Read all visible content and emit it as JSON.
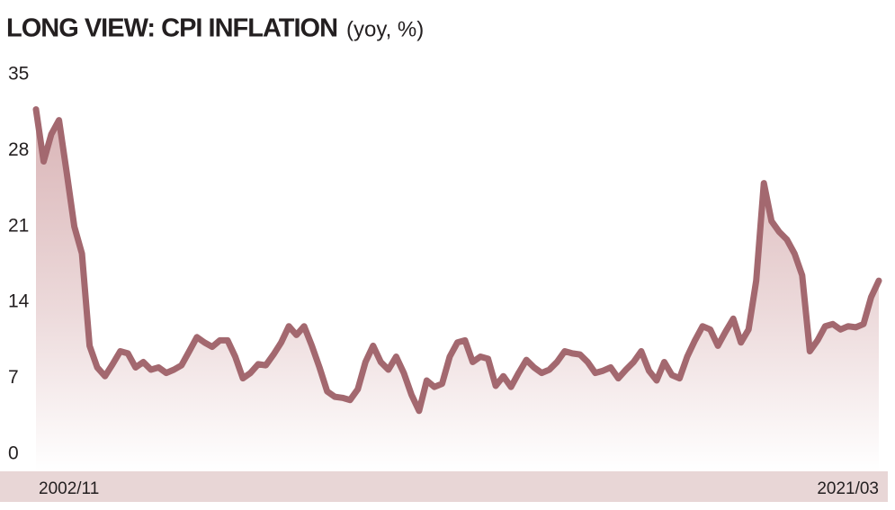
{
  "chart_data": {
    "type": "line",
    "title": "LONG VIEW: CPI INFLATION",
    "subtitle": "(yoy, %)",
    "categories": [
      "2002/11",
      null,
      null,
      null,
      null,
      null,
      null,
      null,
      null,
      null,
      null,
      null,
      null,
      null,
      null,
      null,
      null,
      null,
      null,
      null,
      null,
      null,
      null,
      null,
      null,
      null,
      null,
      null,
      null,
      null,
      null,
      null,
      null,
      null,
      null,
      null,
      null,
      null,
      null,
      null,
      null,
      null,
      null,
      null,
      null,
      null,
      null,
      null,
      null,
      null,
      null,
      null,
      null,
      null,
      null,
      null,
      null,
      null,
      null,
      null,
      null,
      null,
      null,
      null,
      null,
      null,
      null,
      null,
      null,
      null,
      null,
      null,
      null,
      null,
      null,
      null,
      null,
      null,
      null,
      null,
      null,
      null,
      null,
      null,
      null,
      null,
      null,
      null,
      null,
      null,
      null,
      null,
      null,
      null,
      null,
      null,
      null,
      null,
      null,
      null,
      null,
      null,
      null,
      null,
      null,
      null,
      null,
      null,
      null,
      null,
      "2021/03"
    ],
    "values": [
      31.8,
      27,
      29.5,
      30.8,
      26,
      21,
      18.5,
      10,
      8,
      7.2,
      8.3,
      9.5,
      9.3,
      8,
      8.5,
      7.8,
      8,
      7.5,
      7.8,
      8.2,
      9.5,
      10.8,
      10.3,
      9.9,
      10.5,
      10.5,
      9,
      7,
      7.5,
      8.3,
      8.2,
      9.2,
      10.3,
      11.8,
      11,
      11.8,
      10,
      8,
      5.8,
      5.3,
      5.2,
      5,
      6,
      8.5,
      10,
      8.5,
      7.8,
      9,
      7.5,
      5.5,
      4,
      6.8,
      6.2,
      6.5,
      9,
      10.3,
      10.5,
      8.5,
      9,
      8.8,
      6.3,
      7.2,
      6.2,
      7.5,
      8.7,
      8,
      7.5,
      7.8,
      8.5,
      9.5,
      9.3,
      9.2,
      8.5,
      7.5,
      7.7,
      8,
      7,
      7.8,
      8.5,
      9.5,
      7.7,
      6.8,
      8.5,
      7.3,
      7,
      9,
      10.5,
      11.8,
      11.5,
      10,
      11.3,
      12.5,
      10.3,
      11.5,
      16,
      25,
      21.5,
      20.5,
      19.8,
      18.5,
      16.5,
      9.5,
      10.5,
      11.8,
      12,
      11.5,
      11.8,
      11.7,
      12,
      14.5,
      16
    ],
    "color": "#a3686f",
    "ylim": [
      0,
      35
    ],
    "yticks": [
      0,
      7,
      14,
      21,
      28,
      35
    ],
    "grid": false
  }
}
